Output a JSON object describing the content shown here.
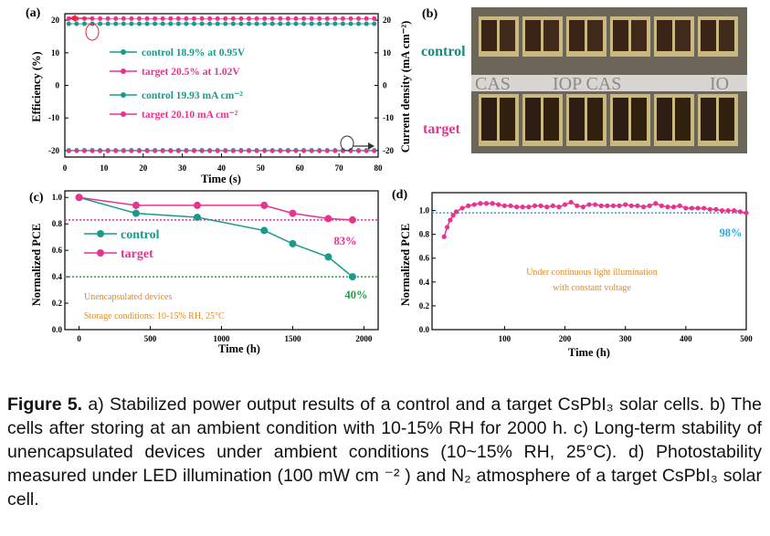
{
  "figure": {
    "panel_labels": [
      "(a)",
      "(b)",
      "(c)",
      "(d)"
    ],
    "photo_labels": {
      "top": "control",
      "bottom": "target",
      "watermark": "IOP CAS"
    },
    "caption": {
      "lead": "Figure 5.",
      "body": " a) Stabilized power output results of a control and a target CsPbI₃ solar cells. b) The cells after storing at an ambient condition with 10-15% RH for 2000 h. c) Long-term stability of unencapsulated devices under ambient conditions (10~15% RH, 25°C). d) Photostability measured under LED illumination (100 mW cm ⁻² ) and N₂ atmosphere of a target CsPbI₃ solar cell."
    }
  },
  "chart_data": [
    {
      "id": "a",
      "type": "scatter",
      "xlabel": "Time (s)",
      "ylabel": "Efficiency (%)",
      "y2label": "Current density (mA cm⁻²)",
      "xlim": [
        0,
        80
      ],
      "ylim": [
        -22,
        22
      ],
      "xticks": [
        0,
        10,
        20,
        30,
        40,
        50,
        60,
        70,
        80
      ],
      "yticks": [
        -20,
        -10,
        0,
        10,
        20
      ],
      "legend": [
        "control 18.9% at 0.95V",
        "target 20.5% at 1.02V",
        "control 19.93 mA cm⁻²",
        "target 20.10 mA cm⁻²"
      ],
      "series": [
        {
          "name": "control 18.9% at 0.95V",
          "color": "#1a9a8a",
          "y": 18.9
        },
        {
          "name": "target 20.5% at 1.02V",
          "color": "#e8338f",
          "y": 20.5
        },
        {
          "name": "control 19.93 mA cm⁻²",
          "color": "#1a9a8a",
          "y": -19.93
        },
        {
          "name": "target 20.10 mA cm⁻²",
          "color": "#e8338f",
          "y": -20.1
        }
      ]
    },
    {
      "id": "c",
      "type": "line",
      "xlabel": "Time (h)",
      "ylabel": "Normalized PCE",
      "xlim": [
        -100,
        2100
      ],
      "ylim": [
        0,
        1.0
      ],
      "xticks": [
        0,
        500,
        1000,
        1500,
        2000
      ],
      "yticks": [
        0.0,
        0.2,
        0.4,
        0.6,
        0.8,
        1.0
      ],
      "x": [
        0,
        400,
        830,
        1300,
        1500,
        1750,
        1920
      ],
      "series": [
        {
          "name": "control",
          "color": "#1a9a8a",
          "values": [
            1.0,
            0.88,
            0.85,
            0.75,
            0.65,
            0.55,
            0.4
          ]
        },
        {
          "name": "target",
          "color": "#e8338f",
          "values": [
            1.0,
            0.94,
            0.94,
            0.94,
            0.88,
            0.84,
            0.83
          ]
        }
      ],
      "reference_lines": [
        {
          "y": 0.83,
          "color": "#e8338f"
        },
        {
          "y": 0.4,
          "color": "#2aa34a"
        }
      ],
      "annotations": [
        "83%",
        "40%",
        "Unencapsulated devices",
        "Storage conditions:  10-15% RH, 25°C"
      ]
    },
    {
      "id": "d",
      "type": "line",
      "xlabel": "Time (h)",
      "ylabel": "Normalized PCE",
      "xlim": [
        -20,
        500
      ],
      "ylim": [
        0,
        1.1
      ],
      "xticks": [
        100,
        200,
        300,
        400,
        500
      ],
      "yticks": [
        0.0,
        0.2,
        0.4,
        0.6,
        0.8,
        1.0
      ],
      "series": [
        {
          "name": "target",
          "color": "#e8338f",
          "x": [
            0,
            5,
            10,
            15,
            20,
            30,
            40,
            50,
            60,
            70,
            80,
            90,
            100,
            110,
            120,
            130,
            140,
            150,
            160,
            170,
            180,
            190,
            200,
            210,
            220,
            230,
            240,
            250,
            260,
            270,
            280,
            290,
            300,
            310,
            320,
            330,
            340,
            350,
            360,
            370,
            380,
            390,
            400,
            410,
            420,
            430,
            440,
            450,
            460,
            470,
            480,
            490,
            500
          ],
          "values": [
            0.78,
            0.86,
            0.92,
            0.96,
            0.99,
            1.02,
            1.04,
            1.05,
            1.06,
            1.06,
            1.06,
            1.05,
            1.04,
            1.04,
            1.03,
            1.03,
            1.03,
            1.04,
            1.04,
            1.03,
            1.04,
            1.03,
            1.05,
            1.07,
            1.04,
            1.03,
            1.05,
            1.05,
            1.04,
            1.04,
            1.04,
            1.04,
            1.05,
            1.04,
            1.04,
            1.03,
            1.04,
            1.06,
            1.04,
            1.03,
            1.03,
            1.04,
            1.02,
            1.02,
            1.02,
            1.02,
            1.01,
            1.01,
            1.0,
            1.0,
            1.0,
            0.99,
            0.98
          ]
        }
      ],
      "reference_lines": [
        {
          "y": 0.98,
          "color": "#2aa8d8"
        }
      ],
      "annotations": [
        "98%",
        "Under continuous light illumination",
        "with constant voltage"
      ]
    }
  ]
}
